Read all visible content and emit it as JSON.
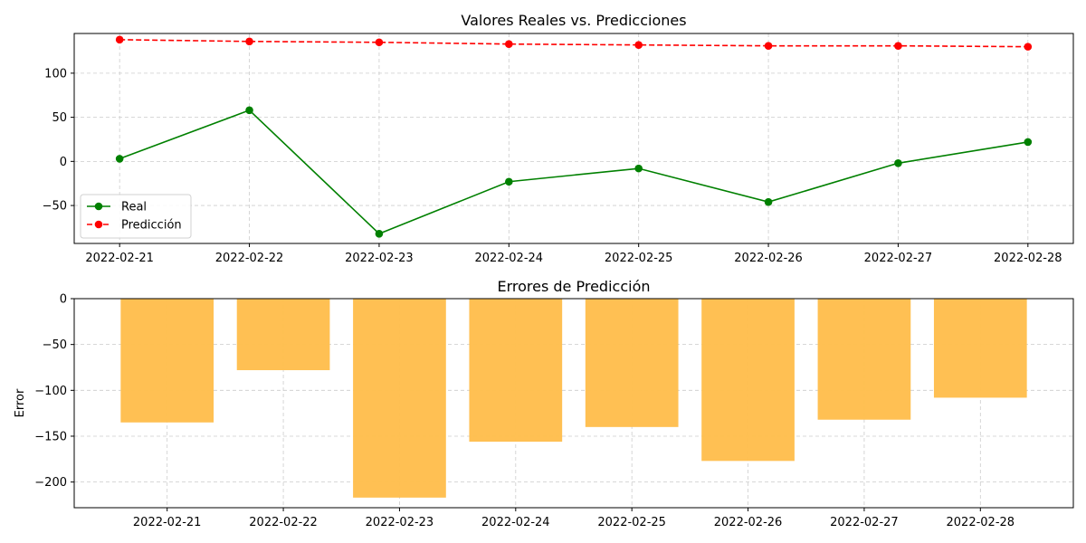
{
  "chart_data": [
    {
      "type": "line",
      "title": "Valores Reales vs. Predicciones",
      "xlabel": "",
      "ylabel": "",
      "x": [
        "2022-02-21",
        "2022-02-22",
        "2022-02-23",
        "2022-02-24",
        "2022-02-25",
        "2022-02-26",
        "2022-02-27",
        "2022-02-28"
      ],
      "xlim": [
        "2022-02-20.65",
        "2022-02-28.35"
      ],
      "ylim": [
        -93,
        145
      ],
      "yticks": [
        -50,
        0,
        50,
        100
      ],
      "grid": true,
      "legend": "lower-left",
      "series": [
        {
          "name": "Real",
          "values": [
            3,
            58,
            -82,
            -23,
            -8,
            -46,
            -2,
            22
          ],
          "color": "#008000",
          "linestyle": "solid",
          "marker": "circle"
        },
        {
          "name": "Predicción",
          "values": [
            138,
            136,
            135,
            133,
            132,
            131,
            131,
            130
          ],
          "color": "#ff0000",
          "linestyle": "dashed",
          "marker": "circle"
        }
      ]
    },
    {
      "type": "bar",
      "title": "Errores de Predicción",
      "xlabel": "",
      "ylabel": "Error",
      "categories": [
        "2022-02-21",
        "2022-02-22",
        "2022-02-23",
        "2022-02-24",
        "2022-02-25",
        "2022-02-26",
        "2022-02-27",
        "2022-02-28"
      ],
      "values": [
        -135,
        -78,
        -217,
        -156,
        -140,
        -177,
        -132,
        -108
      ],
      "ylim": [
        -228,
        0
      ],
      "yticks": [
        -200,
        -150,
        -100,
        -50,
        0
      ],
      "color": "#ffbe4d",
      "grid": true
    }
  ]
}
